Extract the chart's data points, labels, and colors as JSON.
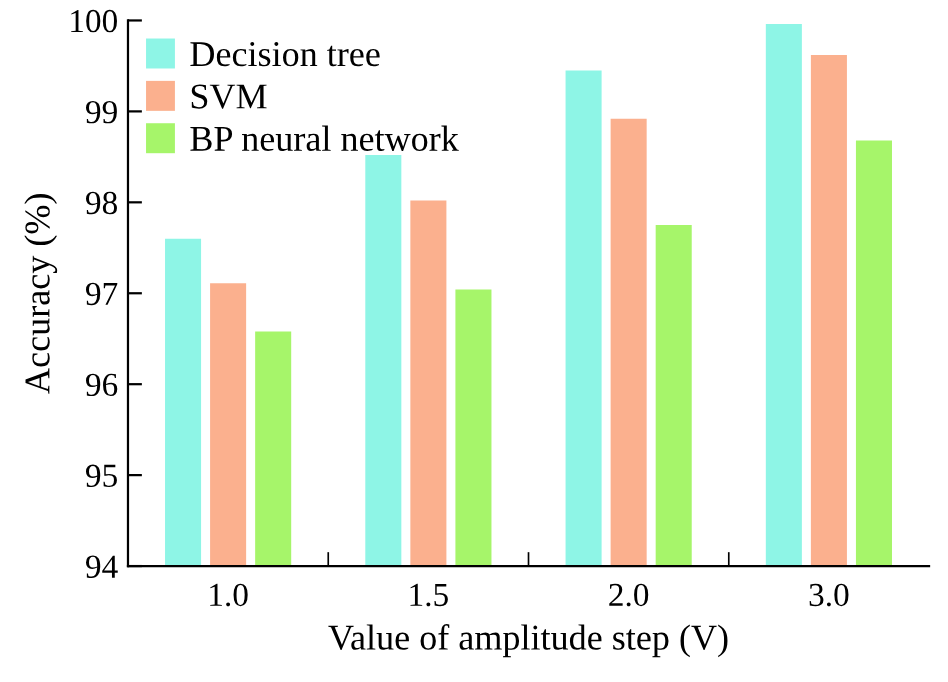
{
  "chart_data": {
    "type": "bar",
    "xlabel": "Value of amplitude step (V)",
    "ylabel": "Accuracy (%)",
    "categories": [
      "1.0",
      "1.5",
      "2.0",
      "3.0"
    ],
    "series": [
      {
        "name": "Decision tree",
        "color": "#8ef5e6",
        "values": [
          97.6,
          98.52,
          99.45,
          99.96
        ]
      },
      {
        "name": "SVM",
        "color": "#fbb08e",
        "values": [
          97.11,
          98.02,
          98.92,
          99.62
        ]
      },
      {
        "name": "BP neural network",
        "color": "#a6f56a",
        "values": [
          96.58,
          97.04,
          97.75,
          98.68
        ]
      }
    ],
    "ylim": [
      94,
      100
    ],
    "yticks": [
      94,
      95,
      96,
      97,
      98,
      99,
      100
    ],
    "grid": false,
    "legend": "top left"
  }
}
